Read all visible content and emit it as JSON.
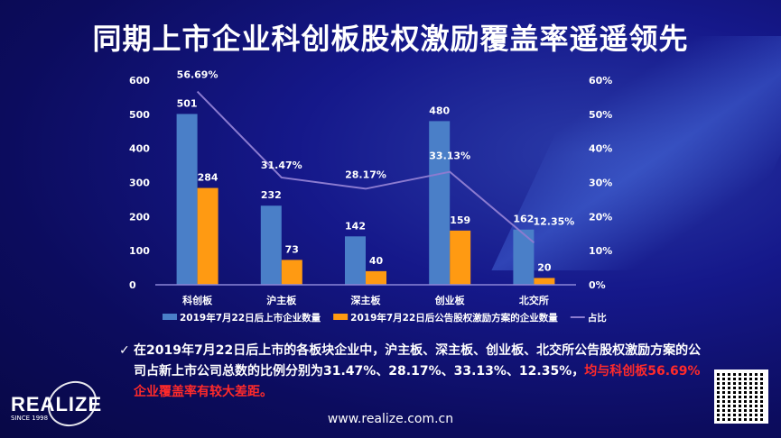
{
  "title": "同期上市企业科创板股权激励覆盖率遥遥领先",
  "chart_data": {
    "type": "bar",
    "categories": [
      "科创板",
      "沪主板",
      "深主板",
      "创业板",
      "北交所"
    ],
    "series": [
      {
        "name": "2019年7月22日后上市企业数量",
        "type": "bar",
        "axis": "left",
        "color": "#4a7fc8",
        "values": [
          501,
          232,
          142,
          480,
          162
        ],
        "labels": [
          "501",
          "232",
          "142",
          "480",
          "162"
        ]
      },
      {
        "name": "2019年7月22日后公告股权激励方案的企业数量",
        "type": "bar",
        "axis": "left",
        "color": "#ff9a12",
        "values": [
          284,
          73,
          40,
          159,
          20
        ],
        "labels": [
          "284",
          "73",
          "40",
          "159",
          "20"
        ]
      },
      {
        "name": "占比",
        "type": "line",
        "axis": "right",
        "color": "#8b7bd0",
        "values": [
          56.69,
          31.47,
          28.17,
          33.13,
          12.35
        ],
        "labels": [
          "56.69%",
          "31.47%",
          "28.17%",
          "33.13%",
          "12.35%"
        ]
      }
    ],
    "ylim": [
      0,
      600
    ],
    "y_ticks": [
      "0",
      "100",
      "200",
      "300",
      "400",
      "500",
      "600"
    ],
    "y2lim": [
      0,
      60
    ],
    "y2_ticks": [
      "0%",
      "10%",
      "20%",
      "30%",
      "40%",
      "50%",
      "60%"
    ],
    "grid": false,
    "legend_placement": "bottom"
  },
  "bullet": {
    "check_icon": "checkmark-icon",
    "text": "在2019年7月22日后上市的各板块企业中，沪主板、深主板、创业板、北交所公告股权激励方案的公司占新上市公司总数的比例分别为31.47%、28.17%、33.13%、12.35%，",
    "highlight": "均与科创板56.69%企业覆盖率有较大差距。",
    "highlight_color": "#ff2a2a"
  },
  "logo": {
    "name": "REALIZE",
    "since": "SINCE 1998"
  },
  "url": "www.realize.com.cn"
}
